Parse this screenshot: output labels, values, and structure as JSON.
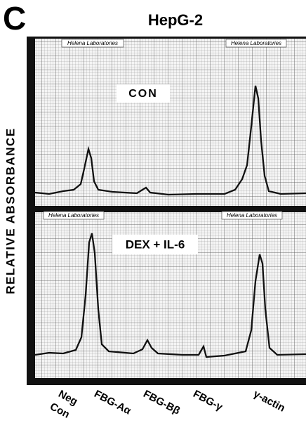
{
  "panel_label": "C",
  "title": "HepG-2",
  "y_label": "RELATIVE ABSORBANCE",
  "panels": [
    {
      "label": "CON",
      "brands": [
        "Helena Laboratories",
        "Helena Laboratories"
      ]
    },
    {
      "label": "DEX + IL-6",
      "brands": [
        "Helena Laboratories",
        "Helena Laboratories"
      ]
    }
  ],
  "x_labels": [
    [
      "Neg",
      "Con"
    ],
    [
      "FBG-Aα"
    ],
    [
      "FBG-Bβ"
    ],
    [
      "FBG-γ"
    ],
    [
      "γ-actin"
    ]
  ]
}
